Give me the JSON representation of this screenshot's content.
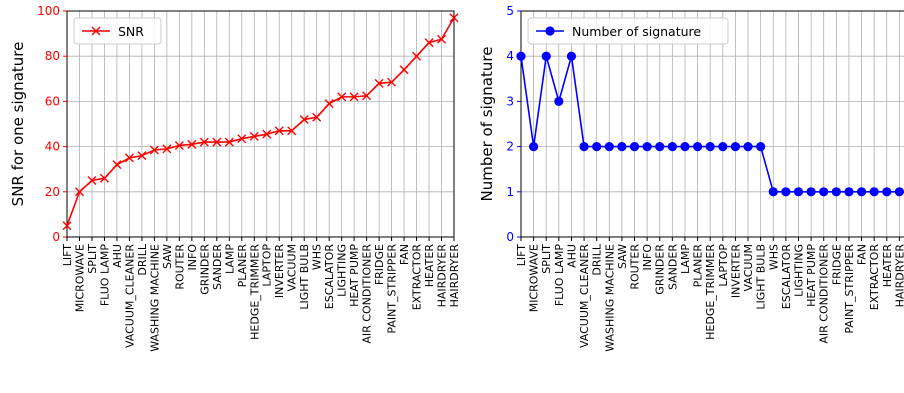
{
  "chart_data": [
    {
      "type": "line",
      "ylabel": "SNR for one signature",
      "ylim": [
        0,
        100
      ],
      "yticks": [
        0,
        20,
        40,
        60,
        80,
        100
      ],
      "grid": true,
      "legend_position": "top-left",
      "axis_color": "#ff0000",
      "categories": [
        "LIFT",
        "MICROWAVE",
        "SPLIT",
        "FLUO LAMP",
        "AHU",
        "VACUUM_CLEANER",
        "DRILL",
        "WASHING MACHINE",
        "SAW",
        "ROUTER",
        "INFO",
        "GRINDER",
        "SANDER",
        "LAMP",
        "PLANER",
        "HEDGE_TRIMMER",
        "LAPTOP",
        "INVERTER",
        "VACUUM",
        "LIGHT BULB",
        "WHS",
        "ESCALATOR",
        "LIGHTING",
        "HEAT PUMP",
        "AIR CONDITIONER",
        "FRIDGE",
        "PAINT_STRIPPER",
        "FAN",
        "EXTRACTOR",
        "HEATER",
        "HAIRDRYER",
        "HAIRDRYER"
      ],
      "series": [
        {
          "name": "SNR",
          "color": "#ff0000",
          "marker": "x",
          "values": [
            5,
            20,
            25,
            26,
            32,
            35,
            36,
            38.5,
            39,
            40.5,
            41,
            42,
            42,
            42,
            43.5,
            44.5,
            45.5,
            47,
            47,
            52,
            53,
            59,
            62,
            62,
            62.5,
            68,
            68.5,
            74,
            80,
            86,
            87.5,
            97
          ]
        }
      ]
    },
    {
      "type": "line",
      "ylabel": "Number of signature",
      "ylim": [
        0,
        5
      ],
      "yticks": [
        0,
        1,
        2,
        3,
        4,
        5
      ],
      "grid": true,
      "legend_position": "top-left",
      "axis_color": "#0000ff",
      "categories": [
        "LIFT",
        "MICROWAVE",
        "SPLIT",
        "FLUO LAMP",
        "AHU",
        "VACUUM_CLEANER",
        "DRILL",
        "WASHING MACHINE",
        "SAW",
        "ROUTER",
        "INFO",
        "GRINDER",
        "SANDER",
        "LAMP",
        "PLANER",
        "HEDGE_TRIMMER",
        "LAPTOP",
        "INVERTER",
        "VACUUM",
        "LIGHT BULB",
        "WHS",
        "ESCALATOR",
        "LIGHTING",
        "HEAT PUMP",
        "AIR CONDITIONER",
        "FRIDGE",
        "PAINT_STRIPPER",
        "FAN",
        "EXTRACTOR",
        "HEATER",
        "HAIRDRYER",
        "HAIRDRYER"
      ],
      "series": [
        {
          "name": "Number of signature",
          "color": "#0000ff",
          "marker": "o",
          "values": [
            4,
            2,
            4,
            3,
            4,
            2,
            2,
            2,
            2,
            2,
            2,
            2,
            2,
            2,
            2,
            2,
            2,
            2,
            2,
            2,
            1,
            1,
            1,
            1,
            1,
            1,
            1,
            1,
            1,
            1,
            1,
            1
          ]
        }
      ]
    }
  ]
}
